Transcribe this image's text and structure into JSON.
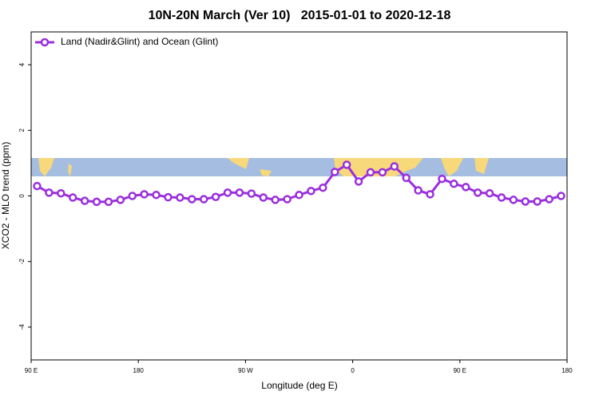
{
  "chart_data": {
    "type": "line",
    "title": "10N-20N March (Ver 10)   2015-01-01 to 2020-12-18",
    "x_label": "Longitude (deg E)",
    "y_label": "XCO2 - MLO trend (ppm)",
    "xlim": [
      90,
      540
    ],
    "ylim": [
      -5,
      5
    ],
    "xticks": [
      {
        "value": 90,
        "label": "90 E"
      },
      {
        "value": 180,
        "label": "180"
      },
      {
        "value": 270,
        "label": "90 W"
      },
      {
        "value": 360,
        "label": "0"
      },
      {
        "value": 450,
        "label": "90 E"
      },
      {
        "value": 540,
        "label": "180"
      }
    ],
    "yticks": [
      -4,
      -2,
      0,
      2,
      4
    ],
    "legend_position": "top-left",
    "x": [
      95,
      105,
      115,
      125,
      135,
      145,
      155,
      165,
      175,
      185,
      195,
      205,
      215,
      225,
      235,
      245,
      255,
      265,
      275,
      285,
      295,
      305,
      315,
      325,
      335,
      345,
      355,
      365,
      375,
      385,
      395,
      405,
      415,
      425,
      435,
      445,
      455,
      465,
      475,
      485,
      495,
      505,
      515,
      525,
      535
    ],
    "series": [
      {
        "name": "Land (Nadir&Glint) and Ocean (Glint)",
        "color": "#9b2fde",
        "values": [
          0.3,
          0.1,
          0.08,
          -0.05,
          -0.15,
          -0.18,
          -0.18,
          -0.12,
          0.0,
          0.05,
          0.03,
          -0.04,
          -0.05,
          -0.1,
          -0.1,
          -0.03,
          0.1,
          0.1,
          0.07,
          -0.05,
          -0.12,
          -0.1,
          0.03,
          0.15,
          0.25,
          0.73,
          0.95,
          0.44,
          0.72,
          0.72,
          0.9,
          0.55,
          0.17,
          0.05,
          0.52,
          0.37,
          0.27,
          0.1,
          0.08,
          -0.05,
          -0.12,
          -0.17,
          -0.17,
          -0.1,
          0.0
        ]
      }
    ]
  }
}
